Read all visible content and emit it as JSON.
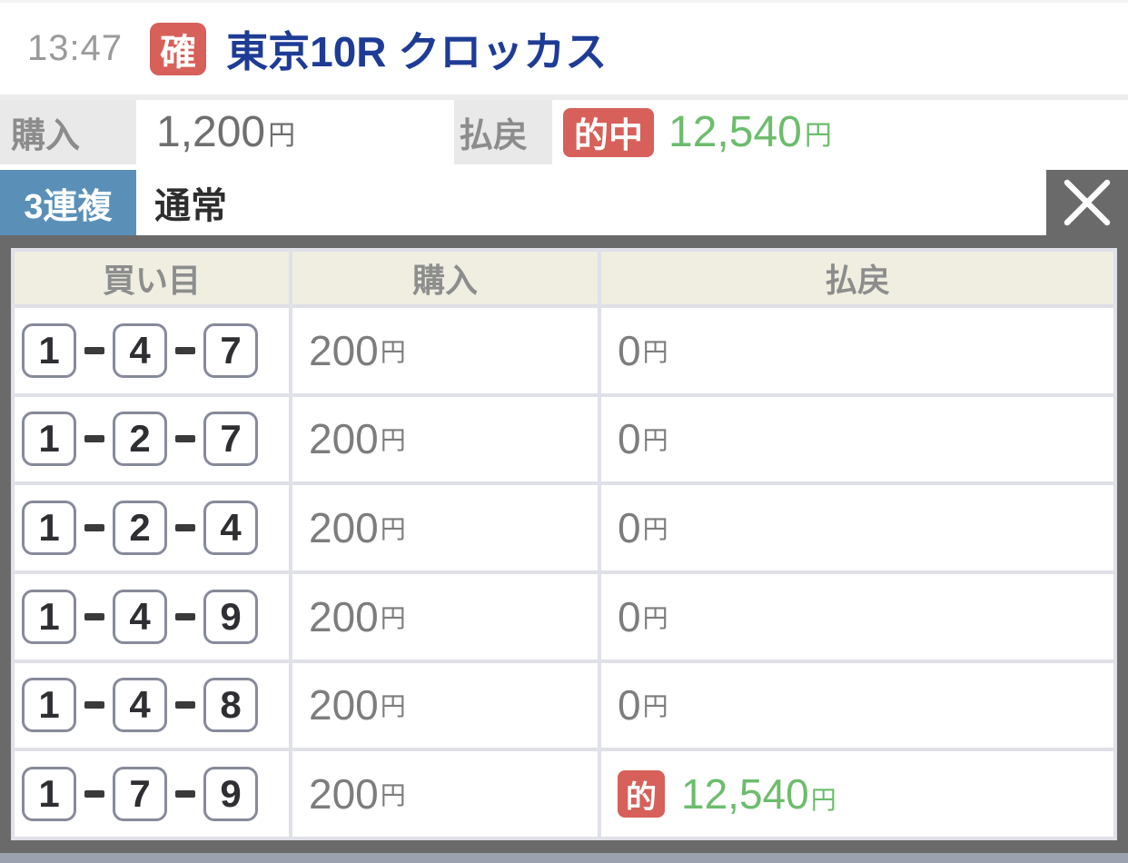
{
  "header": {
    "time": "13:47",
    "confirm_badge": "確",
    "race_title": "東京10R クロッカス"
  },
  "summary": {
    "purchase_label": "購入",
    "purchase_amount": "1,200",
    "payout_label": "払戻",
    "hit_badge": "的中",
    "payout_amount": "12,540",
    "yen_unit": "円"
  },
  "bet_type": {
    "type_badge": "3連複",
    "method": "通常",
    "close_icon": "✕"
  },
  "table": {
    "headers": [
      "買い目",
      "購入",
      "払戻"
    ],
    "yen_unit": "円",
    "hit_badge": "的",
    "rows": [
      {
        "numbers": [
          "1",
          "4",
          "7"
        ],
        "purchase": "200",
        "payout": "0",
        "hit": false
      },
      {
        "numbers": [
          "1",
          "2",
          "7"
        ],
        "purchase": "200",
        "payout": "0",
        "hit": false
      },
      {
        "numbers": [
          "1",
          "2",
          "4"
        ],
        "purchase": "200",
        "payout": "0",
        "hit": false
      },
      {
        "numbers": [
          "1",
          "4",
          "9"
        ],
        "purchase": "200",
        "payout": "0",
        "hit": false
      },
      {
        "numbers": [
          "1",
          "4",
          "8"
        ],
        "purchase": "200",
        "payout": "0",
        "hit": false
      },
      {
        "numbers": [
          "1",
          "7",
          "9"
        ],
        "purchase": "200",
        "payout": "12,540",
        "hit": true
      }
    ]
  },
  "colors": {
    "accent_red": "#d7605a",
    "hit_green": "#6cbd6c",
    "type_blue": "#5a90b8",
    "title_blue": "#1e3c96",
    "border_dark": "#6a6a6a"
  }
}
